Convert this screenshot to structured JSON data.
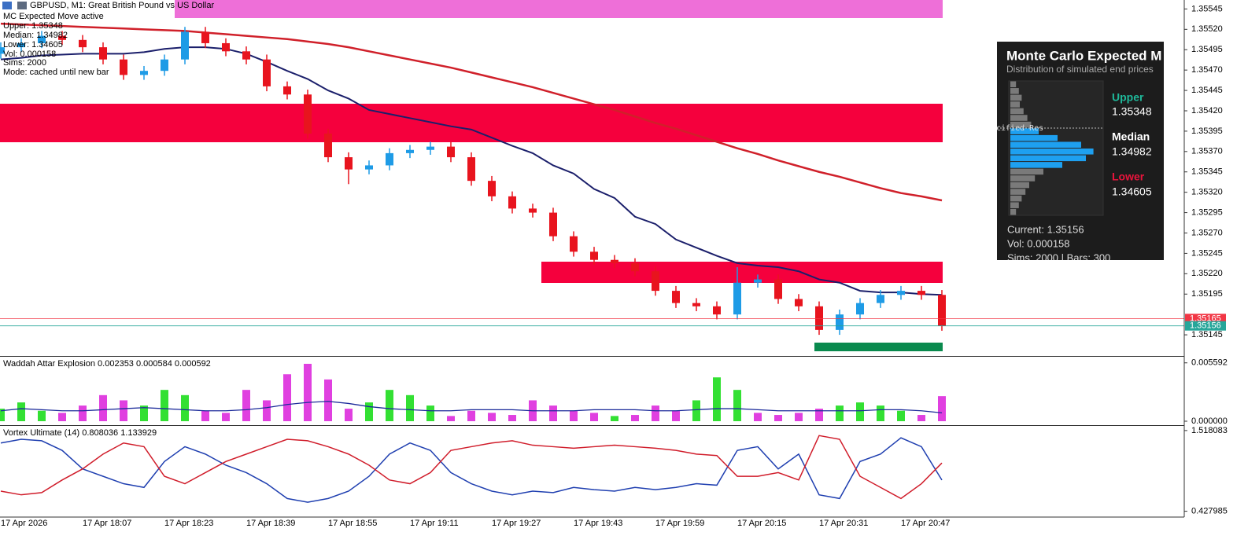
{
  "window": {
    "symbol_title": "GBPUSD, M1:  Great British Pound vs US Dollar",
    "overlay_lines": [
      "MC Expected Move active",
      "Upper: 1.35348",
      "Median: 1.34982",
      "Lower: 1.34605",
      "Vol: 0.000158",
      "Sims: 2000",
      "Mode: cached until new bar"
    ]
  },
  "mc_panel": {
    "title": "Monte Carlo Expected M",
    "subtitle": "Distribution of simulated end prices",
    "upper_label": "Upper",
    "upper_value": "1.35348",
    "median_label": "Median",
    "median_value": "1.34982",
    "lower_label": "Lower",
    "lower_value": "1.34605",
    "current": "Current: 1.35156",
    "vol": "Vol: 0.000158",
    "sims": "Sims: 2000 | Bars: 300",
    "fragment": "cified Res",
    "histogram": {
      "values": [
        6,
        9,
        12,
        10,
        14,
        18,
        22,
        30,
        50,
        75,
        88,
        80,
        55,
        35,
        26,
        20,
        16,
        12,
        9,
        6
      ],
      "colors": [
        "#7a7a7a",
        "#7a7a7a",
        "#7a7a7a",
        "#7a7a7a",
        "#7a7a7a",
        "#7a7a7a",
        "#7a7a7a",
        "#1ea0f0",
        "#1ea0f0",
        "#1ea0f0",
        "#1ea0f0",
        "#1ea0f0",
        "#1ea0f0",
        "#7a7a7a",
        "#7a7a7a",
        "#7a7a7a",
        "#7a7a7a",
        "#7a7a7a",
        "#7a7a7a",
        "#7a7a7a"
      ]
    }
  },
  "chart_data": [
    {
      "type": "candlestick",
      "up_color": "#1e9be6",
      "down_color": "#e8141e",
      "categories": [
        "17 Apr 2026",
        null,
        null,
        null,
        "17 Apr 18:07",
        null,
        null,
        null,
        "17 Apr 18:23",
        null,
        null,
        null,
        "17 Apr 18:39",
        null,
        null,
        null,
        "17 Apr 18:55",
        null,
        null,
        null,
        "17 Apr 19:11",
        null,
        null,
        null,
        "17 Apr 19:27",
        null,
        null,
        null,
        "17 Apr 19:43",
        null,
        null,
        null,
        "17 Apr 19:59",
        null,
        null,
        null,
        "17 Apr 20:15",
        null,
        null,
        null,
        "17 Apr 20:31",
        null,
        null,
        null,
        "17 Apr 20:47",
        null,
        null
      ],
      "open": [
        1.3549,
        1.35498,
        1.35503,
        1.35512,
        1.35507,
        1.35498,
        1.35483,
        1.35464,
        1.35469,
        1.35483,
        1.35517,
        1.35503,
        1.35493,
        1.35483,
        1.3545,
        1.3544,
        1.35392,
        1.35363,
        1.35348,
        1.35353,
        1.35368,
        1.35372,
        1.35376,
        1.35363,
        1.35334,
        1.35315,
        1.353,
        1.35295,
        1.35266,
        1.35247,
        1.35237,
        1.35233,
        1.35223,
        1.35199,
        1.35184,
        1.3518,
        1.3517,
        1.35209,
        1.35213,
        1.35189,
        1.3518,
        1.35151,
        1.3517,
        1.35184,
        1.35194,
        1.35199,
        1.35194
      ],
      "high": [
        1.35504,
        1.35509,
        1.35518,
        1.35518,
        1.35513,
        1.35504,
        1.35489,
        1.35475,
        1.35489,
        1.35523,
        1.35523,
        1.35509,
        1.35499,
        1.35489,
        1.35456,
        1.35446,
        1.35398,
        1.35369,
        1.35359,
        1.35374,
        1.35378,
        1.35382,
        1.35382,
        1.35369,
        1.3534,
        1.35321,
        1.35306,
        1.35301,
        1.35272,
        1.35253,
        1.35243,
        1.35239,
        1.35229,
        1.35205,
        1.3519,
        1.35186,
        1.35228,
        1.35219,
        1.35219,
        1.35195,
        1.35186,
        1.35176,
        1.3519,
        1.352,
        1.35205,
        1.35205,
        1.352
      ],
      "low": [
        1.35484,
        1.35492,
        1.35497,
        1.35501,
        1.35492,
        1.35477,
        1.35458,
        1.35458,
        1.35463,
        1.35477,
        1.35497,
        1.35487,
        1.35477,
        1.35444,
        1.35434,
        1.35386,
        1.35357,
        1.3533,
        1.35342,
        1.35347,
        1.35362,
        1.35366,
        1.35357,
        1.35328,
        1.35309,
        1.35294,
        1.35289,
        1.3526,
        1.35241,
        1.35231,
        1.35227,
        1.35217,
        1.35193,
        1.35178,
        1.35174,
        1.35164,
        1.35164,
        1.35203,
        1.35183,
        1.35174,
        1.35145,
        1.35145,
        1.35164,
        1.35178,
        1.35188,
        1.35188,
        1.3515
      ],
      "close": [
        1.35498,
        1.35503,
        1.35512,
        1.35507,
        1.35498,
        1.35483,
        1.35464,
        1.35469,
        1.35483,
        1.35517,
        1.35503,
        1.35493,
        1.35483,
        1.3545,
        1.3544,
        1.35392,
        1.35363,
        1.35348,
        1.35353,
        1.35368,
        1.35372,
        1.35376,
        1.35363,
        1.35334,
        1.35315,
        1.353,
        1.35295,
        1.35266,
        1.35247,
        1.35237,
        1.35233,
        1.35223,
        1.35199,
        1.35184,
        1.3518,
        1.3517,
        1.35209,
        1.35213,
        1.35189,
        1.3518,
        1.35151,
        1.3517,
        1.35184,
        1.35194,
        1.35199,
        1.35194,
        1.35156
      ],
      "series": [
        {
          "color": "#1b1f6b",
          "values": [
            1.35483,
            1.35485,
            1.35488,
            1.35489,
            1.3549,
            1.3549,
            1.3549,
            1.35492,
            1.35496,
            1.35498,
            1.35498,
            1.35496,
            1.3549,
            1.3548,
            1.35469,
            1.35459,
            1.35445,
            1.35435,
            1.35421,
            1.35416,
            1.35411,
            1.35406,
            1.35401,
            1.35397,
            1.35387,
            1.35377,
            1.35368,
            1.35353,
            1.35343,
            1.35324,
            1.35313,
            1.3529,
            1.35281,
            1.35262,
            1.35252,
            1.35242,
            1.35233,
            1.3523,
            1.35228,
            1.35223,
            1.35213,
            1.35209,
            1.35199,
            1.35197,
            1.35197,
            1.35195,
            1.35194
          ]
        },
        {
          "color": "#d0202a",
          "values": [
            1.35527,
            1.35526,
            1.35525,
            1.35524,
            1.35523,
            1.35522,
            1.35521,
            1.3552,
            1.35519,
            1.35518,
            1.35516,
            1.35514,
            1.35512,
            1.3551,
            1.35508,
            1.35505,
            1.35502,
            1.35498,
            1.35493,
            1.35488,
            1.35483,
            1.35478,
            1.35473,
            1.35467,
            1.35461,
            1.35455,
            1.35449,
            1.35442,
            1.35435,
            1.35428,
            1.35421,
            1.35413,
            1.35405,
            1.35398,
            1.3539,
            1.35382,
            1.35374,
            1.35367,
            1.35359,
            1.35352,
            1.35345,
            1.35339,
            1.35332,
            1.35325,
            1.35319,
            1.35315,
            1.3531
          ]
        }
      ],
      "price_labels": [
        {
          "value": 1.35165,
          "color": "#f23645"
        },
        {
          "value": 1.35156,
          "color": "#26a69a"
        }
      ],
      "ylim": [
        1.3512,
        1.35556
      ],
      "yticks": [
        1.35545,
        {
          "value": 1.3552,
          "label": "1.35520"
        },
        1.35495,
        {
          "value": 1.3547,
          "label": "1.35470"
        },
        1.35445,
        {
          "value": 1.3542,
          "label": "1.35420"
        },
        1.35395,
        {
          "value": 1.3537,
          "label": "1.35370"
        },
        1.35345,
        {
          "value": 1.3532,
          "label": "1.35320"
        },
        1.35295,
        {
          "value": 1.3527,
          "label": "1.35270"
        },
        1.35245,
        {
          "value": 1.3522,
          "label": "1.35220"
        },
        1.35195,
        1.35145
      ]
    },
    {
      "type": "bar",
      "title": "Waddah Attar Explosion 0.002353 0.000584 0.000592",
      "series": [
        {
          "color": "#33e033",
          "values": [
            0.0012,
            0.0018,
            0.001,
            null,
            null,
            null,
            null,
            0.0015,
            0.003,
            0.0025,
            null,
            null,
            null,
            null,
            null,
            null,
            null,
            null,
            0.0018,
            0.003,
            0.0025,
            0.0015,
            null,
            null,
            null,
            null,
            null,
            null,
            null,
            null,
            0.0005,
            null,
            null,
            null,
            0.002,
            0.0042,
            0.003,
            null,
            null,
            null,
            null,
            0.0015,
            0.0018,
            0.0015,
            0.001,
            null,
            null
          ]
        },
        {
          "color": "#e040e0",
          "values": [
            null,
            null,
            null,
            0.0008,
            0.0015,
            0.0025,
            0.002,
            null,
            null,
            null,
            0.001,
            0.0008,
            0.003,
            0.002,
            0.0045,
            0.0055,
            0.004,
            0.0012,
            null,
            null,
            null,
            null,
            0.0005,
            0.001,
            0.0008,
            0.0006,
            0.002,
            0.0015,
            0.001,
            0.0008,
            null,
            0.0006,
            0.0015,
            0.001,
            null,
            null,
            null,
            0.0008,
            0.0006,
            0.0008,
            0.0012,
            null,
            null,
            null,
            null,
            0.0006,
            0.0024
          ]
        },
        {
          "type": "line",
          "color": "#1b2a9a",
          "values": [
            0.001,
            0.0012,
            0.0011,
            0.001,
            0.001,
            0.0011,
            0.0012,
            0.0013,
            0.0012,
            0.0011,
            0.001,
            0.001,
            0.0011,
            0.0013,
            0.0016,
            0.0018,
            0.0019,
            0.0017,
            0.0014,
            0.0012,
            0.0011,
            0.001,
            0.001,
            0.0011,
            0.0011,
            0.0011,
            0.001,
            0.001,
            0.001,
            0.0011,
            0.0011,
            0.0011,
            0.001,
            0.001,
            0.0011,
            0.0012,
            0.0012,
            0.0011,
            0.001,
            0.001,
            0.001,
            0.001,
            0.001,
            0.0011,
            0.0011,
            0.001,
            0.0008
          ]
        }
      ],
      "ylim": [
        -0.0003,
        0.0061
      ],
      "yticks": [
        0.005592,
        {
          "value": 0,
          "label": "0.000000"
        }
      ]
    },
    {
      "type": "line",
      "title": "Vortex Ultimate (14) 0.808036 1.133929",
      "series": [
        {
          "color": "#1f3fb0",
          "values": [
            1.35,
            1.4,
            1.38,
            1.25,
            1.0,
            0.9,
            0.8,
            0.75,
            1.1,
            1.3,
            1.2,
            1.05,
            0.95,
            0.8,
            0.6,
            0.55,
            0.6,
            0.7,
            0.9,
            1.2,
            1.35,
            1.25,
            0.95,
            0.8,
            0.7,
            0.65,
            0.7,
            0.68,
            0.75,
            0.72,
            0.7,
            0.75,
            0.72,
            0.75,
            0.8,
            0.78,
            1.25,
            1.3,
            1.0,
            1.2,
            0.65,
            0.6,
            1.1,
            1.2,
            1.42,
            1.3,
            0.85
          ]
        },
        {
          "color": "#d01c2a",
          "values": [
            0.7,
            0.65,
            0.68,
            0.85,
            1.0,
            1.2,
            1.35,
            1.3,
            0.9,
            0.8,
            0.95,
            1.1,
            1.2,
            1.3,
            1.4,
            1.38,
            1.3,
            1.2,
            1.05,
            0.85,
            0.8,
            0.95,
            1.25,
            1.3,
            1.35,
            1.38,
            1.32,
            1.3,
            1.28,
            1.3,
            1.32,
            1.3,
            1.28,
            1.25,
            1.2,
            1.18,
            0.9,
            0.9,
            0.95,
            0.85,
            1.45,
            1.4,
            0.9,
            0.75,
            0.6,
            0.8,
            1.08
          ]
        }
      ],
      "ylim": [
        0.36,
        1.57
      ],
      "yticks": [
        1.518083,
        0.427985
      ]
    }
  ]
}
